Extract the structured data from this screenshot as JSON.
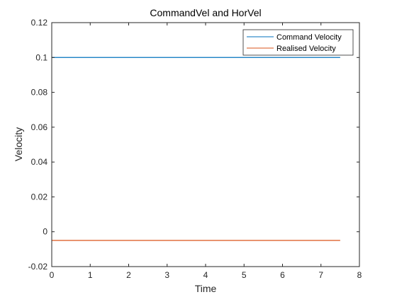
{
  "chart_data": {
    "type": "line",
    "title": "CommandVel and HorVel",
    "xlabel": "Time",
    "ylabel": "Velocity",
    "xlim": [
      0,
      8
    ],
    "ylim": [
      -0.02,
      0.12
    ],
    "xticks": [
      0,
      1,
      2,
      3,
      4,
      5,
      6,
      7,
      8
    ],
    "xtick_labels": [
      "0",
      "1",
      "2",
      "3",
      "4",
      "5",
      "6",
      "7",
      "8"
    ],
    "yticks": [
      -0.02,
      0,
      0.02,
      0.04,
      0.06,
      0.08,
      0.1,
      0.12
    ],
    "ytick_labels": [
      "-0.02",
      "0",
      "0.02",
      "0.04",
      "0.06",
      "0.08",
      "0.1",
      "0.12"
    ],
    "grid": false,
    "legend_position": "top-right",
    "series": [
      {
        "name": "Command Velocity",
        "color": "#0072bd",
        "x": [
          0,
          7.5
        ],
        "y": [
          0.1,
          0.1
        ]
      },
      {
        "name": "Realised Velocity",
        "color": "#d95319",
        "x": [
          0,
          7.5
        ],
        "y": [
          -0.005,
          -0.005
        ]
      }
    ]
  }
}
